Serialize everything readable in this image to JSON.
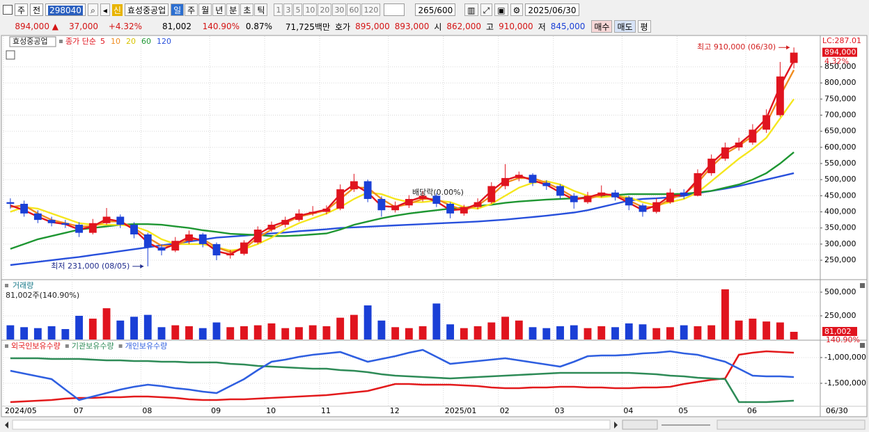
{
  "toolbar": {
    "period_unit": "주",
    "prev": "전",
    "code": "298040",
    "badge": "신",
    "name": "효성중공업",
    "periods": [
      "일",
      "주",
      "월",
      "년",
      "분",
      "초",
      "틱"
    ],
    "intervals": [
      1,
      3,
      5,
      10,
      20,
      30,
      60,
      120
    ],
    "count": 265,
    "max_count": "/600",
    "date": "2025/06/30"
  },
  "info_bar": {
    "price": "894,000 ▲",
    "change": "37,000",
    "change_rate": "+4.32%",
    "volume": "81,002",
    "volume_ratio": "140.90%",
    "turnover": "0.87%",
    "amount": "71,725백만",
    "quote_label": "호가",
    "ask": "895,000",
    "bid": "893,000",
    "open_label": "시",
    "open": "862,000",
    "high_label": "고",
    "high": "910,000",
    "low_label": "저",
    "low": "845,000",
    "buy": "매수",
    "sell": "매도",
    "avg": "평"
  },
  "chart_data": [
    {
      "type": "candlestick",
      "legend_title": "효성중공업",
      "legend_label": "종가 단순",
      "categories": [
        "2024/05",
        null,
        null,
        null,
        null,
        "07",
        null,
        null,
        null,
        null,
        "08",
        null,
        null,
        null,
        null,
        "09",
        null,
        null,
        null,
        "10",
        null,
        null,
        null,
        "11",
        null,
        null,
        null,
        null,
        "12",
        null,
        null,
        null,
        "2025/01",
        null,
        null,
        null,
        "02",
        null,
        null,
        null,
        "03",
        null,
        null,
        null,
        null,
        "04",
        null,
        null,
        null,
        "05",
        null,
        null,
        null,
        null,
        "06",
        null,
        null,
        null
      ],
      "up_color": "#e0141e",
      "down_color": "#1a3fd6",
      "open": [
        430000,
        425000,
        395000,
        375000,
        365000,
        360000,
        335000,
        365000,
        385000,
        360000,
        330000,
        290000,
        280000,
        310000,
        330000,
        300000,
        265000,
        270000,
        305000,
        345000,
        360000,
        375000,
        395000,
        400000,
        410000,
        470000,
        495000,
        440000,
        405000,
        420000,
        440000,
        450000,
        425000,
        395000,
        415000,
        430000,
        480000,
        505000,
        515000,
        490000,
        480000,
        450000,
        430000,
        450000,
        460000,
        445000,
        420000,
        400000,
        430000,
        460000,
        450000,
        520000,
        565000,
        600000,
        615000,
        655000,
        700000,
        862000
      ],
      "high": [
        442000,
        435000,
        405000,
        385000,
        375000,
        368000,
        378000,
        412000,
        392000,
        368000,
        335000,
        300000,
        322000,
        342000,
        335000,
        305000,
        282000,
        312000,
        355000,
        370000,
        385000,
        408000,
        418000,
        420000,
        485000,
        518000,
        500000,
        448000,
        432000,
        452000,
        465000,
        458000,
        430000,
        422000,
        442000,
        492000,
        548000,
        525000,
        520000,
        498000,
        486000,
        458000,
        462000,
        482000,
        468000,
        450000,
        426000,
        442000,
        472000,
        470000,
        532000,
        578000,
        615000,
        630000,
        672000,
        718000,
        865000,
        910000
      ],
      "low": [
        410000,
        385000,
        365000,
        355000,
        350000,
        322000,
        330000,
        360000,
        350000,
        318000,
        231000,
        265000,
        275000,
        300000,
        290000,
        250000,
        255000,
        265000,
        300000,
        338000,
        352000,
        370000,
        388000,
        392000,
        405000,
        462000,
        430000,
        385000,
        398000,
        412000,
        432000,
        415000,
        380000,
        388000,
        408000,
        425000,
        470000,
        495000,
        480000,
        468000,
        440000,
        410000,
        425000,
        445000,
        435000,
        405000,
        385000,
        395000,
        425000,
        440000,
        448000,
        512000,
        558000,
        590000,
        608000,
        645000,
        695000,
        845000
      ],
      "close": [
        425000,
        395000,
        375000,
        365000,
        360000,
        335000,
        365000,
        385000,
        360000,
        330000,
        290000,
        280000,
        310000,
        330000,
        300000,
        265000,
        270000,
        305000,
        345000,
        360000,
        375000,
        395000,
        400000,
        410000,
        470000,
        495000,
        440000,
        405000,
        420000,
        440000,
        450000,
        425000,
        395000,
        415000,
        430000,
        480000,
        505000,
        515000,
        490000,
        480000,
        450000,
        430000,
        450000,
        460000,
        445000,
        420000,
        400000,
        430000,
        460000,
        450000,
        520000,
        565000,
        600000,
        615000,
        655000,
        700000,
        820000,
        894000
      ],
      "series": [
        {
          "name": "5",
          "color": "#e0141e",
          "values": [
            420000,
            405000,
            385000,
            368000,
            362000,
            345000,
            355000,
            378000,
            370000,
            345000,
            305000,
            283000,
            300000,
            322000,
            310000,
            278000,
            268000,
            292000,
            330000,
            355000,
            370000,
            388000,
            398000,
            407000,
            455000,
            485000,
            460000,
            418000,
            415000,
            433000,
            447000,
            432000,
            405000,
            408000,
            425000,
            465000,
            498000,
            512000,
            498000,
            484000,
            460000,
            438000,
            445000,
            457000,
            450000,
            428000,
            405000,
            420000,
            450000,
            452000,
            500000,
            550000,
            590000,
            610000,
            645000,
            690000,
            790000,
            870000
          ]
        },
        {
          "name": "10",
          "color": "#f08c1e",
          "values": [
            415000,
            420000,
            395000,
            375000,
            365000,
            355000,
            355000,
            370000,
            370000,
            350000,
            320000,
            295000,
            295000,
            315000,
            315000,
            290000,
            275000,
            285000,
            320000,
            345000,
            365000,
            385000,
            395000,
            405000,
            440000,
            475000,
            475000,
            440000,
            415000,
            425000,
            440000,
            440000,
            420000,
            405000,
            420000,
            450000,
            490000,
            505000,
            505000,
            490000,
            470000,
            445000,
            440000,
            452000,
            455000,
            435000,
            415000,
            415000,
            440000,
            455000,
            490000,
            540000,
            580000,
            605000,
            635000,
            675000,
            760000,
            840000
          ]
        },
        {
          "name": "20",
          "color": "#f5e61e",
          "values": [
            400000,
            415000,
            410000,
            395000,
            380000,
            365000,
            360000,
            360000,
            360000,
            355000,
            340000,
            315000,
            300000,
            300000,
            300000,
            290000,
            280000,
            285000,
            300000,
            320000,
            345000,
            365000,
            380000,
            395000,
            415000,
            440000,
            460000,
            455000,
            440000,
            430000,
            430000,
            435000,
            430000,
            415000,
            410000,
            425000,
            450000,
            475000,
            490000,
            495000,
            485000,
            465000,
            450000,
            445000,
            450000,
            445000,
            430000,
            420000,
            430000,
            440000,
            460000,
            495000,
            530000,
            565000,
            595000,
            630000,
            690000,
            750000
          ]
        },
        {
          "name": "60",
          "color": "#1e9632",
          "values": [
            285000,
            300000,
            315000,
            325000,
            335000,
            345000,
            350000,
            355000,
            360000,
            362000,
            362000,
            360000,
            355000,
            350000,
            343000,
            338000,
            332000,
            330000,
            328000,
            325000,
            325000,
            327000,
            330000,
            333000,
            345000,
            360000,
            370000,
            380000,
            388000,
            395000,
            400000,
            405000,
            410000,
            413000,
            418000,
            422000,
            428000,
            432000,
            435000,
            438000,
            440000,
            442000,
            445000,
            448000,
            452000,
            455000,
            455000,
            455000,
            455000,
            456000,
            460000,
            465000,
            475000,
            485000,
            500000,
            520000,
            550000,
            585000
          ]
        },
        {
          "name": "120",
          "color": "#2850dc",
          "values": [
            235000,
            240000,
            245000,
            250000,
            255000,
            260000,
            266000,
            272000,
            278000,
            284000,
            290000,
            296000,
            302000,
            308000,
            314000,
            320000,
            323000,
            326000,
            330000,
            333000,
            336000,
            340000,
            343000,
            346000,
            350000,
            352000,
            354000,
            356000,
            358000,
            360000,
            362000,
            364000,
            366000,
            368000,
            370000,
            373000,
            376000,
            380000,
            384000,
            388000,
            393000,
            398000,
            405000,
            415000,
            425000,
            435000,
            440000,
            442000,
            445000,
            450000,
            458000,
            465000,
            472000,
            480000,
            490000,
            500000,
            510000,
            520000
          ]
        }
      ],
      "ylim": [
        194000,
        945000
      ],
      "yticks": [
        {
          "value": 250000,
          "label": "250,000"
        },
        {
          "value": 300000,
          "label": "300,000"
        },
        {
          "value": 350000,
          "label": "350,000"
        },
        {
          "value": 400000,
          "label": "400,000"
        },
        {
          "value": 450000,
          "label": "450,000"
        },
        {
          "value": 500000,
          "label": "500,000"
        },
        {
          "value": 550000,
          "label": "550,000"
        },
        {
          "value": 600000,
          "label": "600,000"
        },
        {
          "value": 650000,
          "label": "650,000"
        },
        {
          "value": 700000,
          "label": "700,000"
        },
        {
          "value": 750000,
          "label": "750,000"
        },
        {
          "value": 800000,
          "label": "800,000"
        },
        {
          "value": 850000,
          "label": "850,000"
        }
      ],
      "grid": true,
      "annotations": [
        {
          "text": "최고 910,000 (06/30)",
          "value": 910000,
          "color": "#d21e1e"
        },
        {
          "text": "최저 231,000 (08/05)",
          "value": 231000,
          "color": "#1e2a8c"
        }
      ],
      "event_label": "배당락(0.00%)",
      "lc_label": "LC:287.01",
      "last_price_label": "894,000",
      "change_label": "4.32%"
    },
    {
      "type": "bar",
      "title": "거래량",
      "subtitle": "81,002주(140.90%)",
      "values": [
        150000,
        130000,
        120000,
        140000,
        110000,
        250000,
        220000,
        330000,
        200000,
        240000,
        260000,
        130000,
        150000,
        140000,
        120000,
        180000,
        130000,
        140000,
        150000,
        170000,
        120000,
        130000,
        150000,
        140000,
        230000,
        260000,
        360000,
        200000,
        130000,
        120000,
        140000,
        380000,
        160000,
        120000,
        140000,
        180000,
        240000,
        200000,
        130000,
        120000,
        140000,
        150000,
        120000,
        140000,
        130000,
        170000,
        160000,
        120000,
        130000,
        150000,
        140000,
        150000,
        530000,
        200000,
        220000,
        190000,
        180000,
        81002
      ],
      "ylim": [
        0,
        610000
      ],
      "yticks": [
        {
          "value": 250000,
          "label": "250,000"
        },
        {
          "value": 500000,
          "label": "500,000"
        }
      ],
      "last_value_label": "81,002",
      "last_ratio_label": "140.90%"
    },
    {
      "type": "line",
      "series": [
        {
          "name": "외국인보유수량",
          "color": "#e31a1c",
          "values": [
            -1865000,
            -1851000,
            -1838000,
            -1824000,
            -1797000,
            -1784000,
            -1784000,
            -1770000,
            -1770000,
            -1757000,
            -1757000,
            -1770000,
            -1784000,
            -1811000,
            -1824000,
            -1824000,
            -1811000,
            -1811000,
            -1797000,
            -1784000,
            -1770000,
            -1757000,
            -1743000,
            -1730000,
            -1703000,
            -1676000,
            -1649000,
            -1581000,
            -1514000,
            -1514000,
            -1527000,
            -1527000,
            -1527000,
            -1541000,
            -1554000,
            -1581000,
            -1595000,
            -1595000,
            -1581000,
            -1581000,
            -1568000,
            -1568000,
            -1581000,
            -1581000,
            -1595000,
            -1595000,
            -1581000,
            -1581000,
            -1568000,
            -1514000,
            -1473000,
            -1432000,
            -1405000,
            -946000,
            -906000,
            -878000,
            -892000,
            -906000
          ]
        },
        {
          "name": "기관보유수량",
          "color": "#2e8b57",
          "values": [
            -1014000,
            -1014000,
            -1014000,
            -1027000,
            -1027000,
            -1027000,
            -1041000,
            -1054000,
            -1054000,
            -1068000,
            -1068000,
            -1081000,
            -1081000,
            -1095000,
            -1095000,
            -1095000,
            -1122000,
            -1135000,
            -1162000,
            -1176000,
            -1189000,
            -1203000,
            -1216000,
            -1216000,
            -1243000,
            -1257000,
            -1284000,
            -1324000,
            -1351000,
            -1365000,
            -1378000,
            -1392000,
            -1405000,
            -1392000,
            -1378000,
            -1365000,
            -1351000,
            -1338000,
            -1324000,
            -1311000,
            -1297000,
            -1297000,
            -1297000,
            -1297000,
            -1297000,
            -1297000,
            -1311000,
            -1324000,
            -1351000,
            -1365000,
            -1392000,
            -1405000,
            -1419000,
            -1865000,
            -1865000,
            -1865000,
            -1851000,
            -1838000
          ]
        },
        {
          "name": "개인보유수량",
          "color": "#2f5fe0",
          "values": [
            -1257000,
            -1311000,
            -1365000,
            -1419000,
            -1622000,
            -1824000,
            -1757000,
            -1689000,
            -1622000,
            -1568000,
            -1527000,
            -1554000,
            -1595000,
            -1622000,
            -1662000,
            -1689000,
            -1554000,
            -1419000,
            -1243000,
            -1081000,
            -1041000,
            -987000,
            -946000,
            -919000,
            -892000,
            -987000,
            -1081000,
            -1027000,
            -973000,
            -906000,
            -851000,
            -987000,
            -1122000,
            -1095000,
            -1068000,
            -1041000,
            -1014000,
            -1054000,
            -1095000,
            -1135000,
            -1176000,
            -1081000,
            -973000,
            -960000,
            -960000,
            -946000,
            -919000,
            -906000,
            -878000,
            -919000,
            -946000,
            -1014000,
            -1081000,
            -1216000,
            -1351000,
            -1365000,
            -1365000,
            -1378000
          ]
        }
      ],
      "ylim": [
        -1946000,
        -703000
      ],
      "yticks": [
        {
          "value": -1500000,
          "label": "-1,500,000"
        },
        {
          "value": -1000000,
          "label": "-1,000,000"
        }
      ],
      "end_label": "06/30"
    }
  ]
}
